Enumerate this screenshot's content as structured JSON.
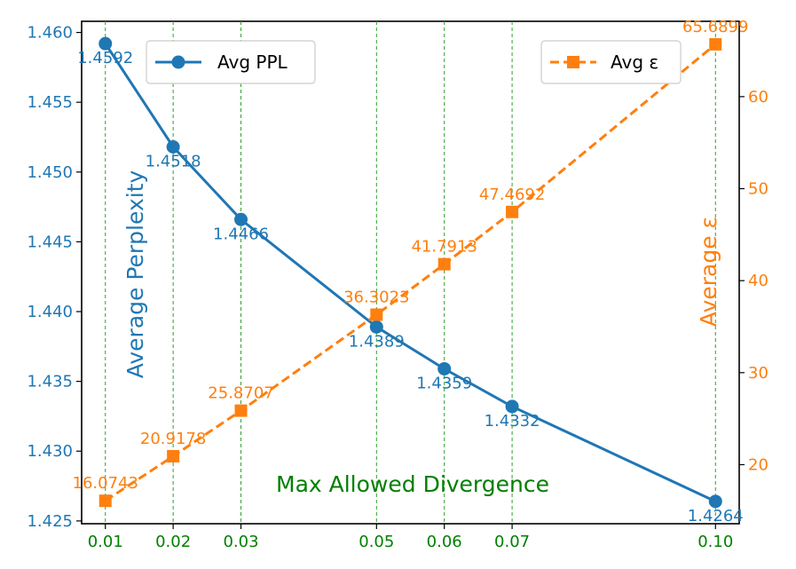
{
  "chart_data": {
    "type": "line",
    "title": "",
    "xlabel": "Max Allowed Divergence",
    "x": [
      0.01,
      0.02,
      0.03,
      0.05,
      0.06,
      0.07,
      0.1
    ],
    "x_tick_labels": [
      "0.01",
      "0.02",
      "0.03",
      "0.05",
      "0.06",
      "0.07",
      "0.10"
    ],
    "xlim": [
      0.0065,
      0.1035
    ],
    "grid": "vertical dashed at x ticks",
    "series": [
      {
        "name": "Avg PPL",
        "axis": "left",
        "values": [
          1.4592,
          1.4518,
          1.4466,
          1.4389,
          1.4359,
          1.4332,
          1.4264
        ],
        "value_labels": [
          "1.4592",
          "1.4518",
          "1.4466",
          "1.4389",
          "1.4359",
          "1.4332",
          "1.4264"
        ],
        "color": "#1f77b4",
        "marker": "circle",
        "linestyle": "solid"
      },
      {
        "name": "Avg ε",
        "axis": "right",
        "values": [
          16.0743,
          20.9178,
          25.8707,
          36.3023,
          41.7913,
          47.4692,
          65.6899
        ],
        "value_labels": [
          "16.0743",
          "20.9178",
          "25.8707",
          "36.3023",
          "41.7913",
          "47.4692",
          "65.6899"
        ],
        "color": "#ff7f0e",
        "marker": "square",
        "linestyle": "dashed"
      }
    ],
    "y_left": {
      "label": "Average Perplexity",
      "ylim": [
        1.4248,
        1.4608
      ],
      "ticks": [
        1.425,
        1.43,
        1.435,
        1.44,
        1.445,
        1.45,
        1.455,
        1.46
      ],
      "tick_labels": [
        "1.425",
        "1.430",
        "1.435",
        "1.440",
        "1.445",
        "1.450",
        "1.455",
        "1.460"
      ],
      "color": "#1f77b4"
    },
    "y_right": {
      "label": "Average ε",
      "ylim": [
        13.58,
        68.19
      ],
      "ticks": [
        20,
        30,
        40,
        50,
        60
      ],
      "tick_labels": [
        "20",
        "30",
        "40",
        "50",
        "60"
      ],
      "color": "#ff7f0e"
    },
    "legends": [
      {
        "position": "top-left",
        "label": "Avg PPL"
      },
      {
        "position": "top-right",
        "label": "Avg ε"
      }
    ],
    "colors": {
      "grid": "#2ca02c",
      "xticks": "#008000",
      "xlabel": "#008000"
    }
  }
}
